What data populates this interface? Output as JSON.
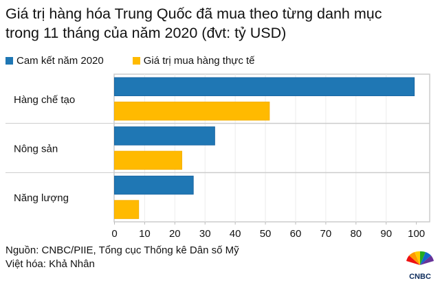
{
  "title_line1": "Giá trị hàng hóa Trung Quốc đã mua theo từng danh mục",
  "title_line2": "trong 11 tháng của năm 2020 (đvt: tỷ USD)",
  "source": "Nguồn: CNBC/PIIE, Tổng cục Thống kê Dân số Mỹ",
  "translator": "Việt hóa: Khả Nhân",
  "logo_text": "CNBC",
  "chart_data": {
    "type": "bar",
    "orientation": "horizontal",
    "categories": [
      "Hàng chế tạo",
      "Nông sản",
      "Năng lượng"
    ],
    "series": [
      {
        "name": "Cam kết năm 2020",
        "color": "#1f77b4",
        "values": [
          99.2,
          33.1,
          26.0
        ]
      },
      {
        "name": "Giá trị mua hàng thực tế",
        "color": "#ffba00",
        "values": [
          51.2,
          22.2,
          7.9
        ]
      }
    ],
    "xlim": [
      0,
      100
    ],
    "xticks": [
      "0",
      "10",
      "20",
      "30",
      "40",
      "50",
      "60",
      "70",
      "80",
      "90",
      "100"
    ],
    "grid": true,
    "legend": "top"
  }
}
